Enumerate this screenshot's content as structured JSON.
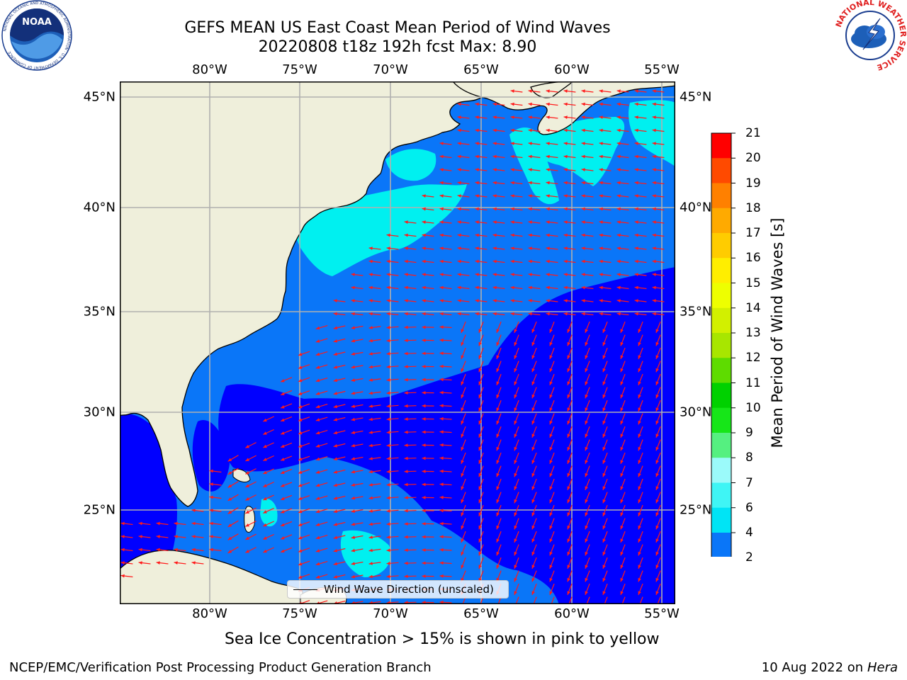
{
  "title": {
    "line1": "GEFS MEAN US East Coast Mean Period of Wind Waves",
    "line2": "20220808 t18z 192h fcst   Max: 8.90"
  },
  "axes": {
    "lon_labels": [
      "80°W",
      "75°W",
      "70°W",
      "65°W",
      "60°W",
      "55°W"
    ],
    "lat_labels": [
      "45°N",
      "40°N",
      "35°N",
      "30°N",
      "25°N"
    ],
    "lon_range": [
      -85,
      -54
    ],
    "lat_range": [
      20.5,
      46
    ],
    "gridlines": true
  },
  "legend": {
    "label": "Wind Wave Direction (unscaled)"
  },
  "colorbar": {
    "title": "Mean Period of Wind Waves [s]",
    "tick_labels": [
      "2",
      "4",
      "6",
      "7",
      "8",
      "9",
      "10",
      "11",
      "12",
      "13",
      "14",
      "15",
      "16",
      "17",
      "18",
      "19",
      "20",
      "21"
    ],
    "colors": [
      "#0a76f8",
      "#00e4f5",
      "#3ff5f5",
      "#9bfafa",
      "#55f080",
      "#16e618",
      "#00d100",
      "#5edc00",
      "#a8e600",
      "#d2f000",
      "#eeff00",
      "#ffee00",
      "#ffcc00",
      "#ffaa00",
      "#ff8000",
      "#ff4a00",
      "#ff0000"
    ],
    "under_color": "#0000ff",
    "placement": "right"
  },
  "map_colors": {
    "land": "#efefdb",
    "level_under_2": "#0000ff",
    "level_2_4": "#0a76f8",
    "level_4_6": "#00f0f0",
    "arrows": "#ff1a1a",
    "grid": "#b0b0b0"
  },
  "subtitle": "Sea Ice Concentration > 15% is shown in pink to yellow",
  "footer": {
    "left": "NCEP/EMC/Verification Post Processing Product Generation Branch",
    "right_date": "10 Aug 2022 on",
    "right_host": "Hera"
  },
  "logos": {
    "noaa": {
      "text": "NOAA",
      "ring_text": "NATIONAL OCEANIC AND ATMOSPHERIC ADMINISTRATION · U.S. DEPARTMENT OF COMMERCE"
    },
    "nws": {
      "ring_text": "NATIONAL WEATHER SERVICE"
    }
  }
}
